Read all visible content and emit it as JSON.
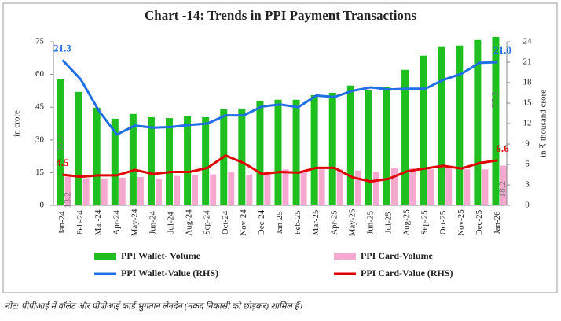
{
  "chart_data": {
    "type": "bar-line",
    "title": "Chart -14: Trends in PPI Payment Transactions",
    "y_label": "in crore",
    "y2_label": "in ₹ thousand crore",
    "categories": [
      "Jan-24",
      "Feb-24",
      "Mar-24",
      "Apr-24",
      "May-24",
      "Jun-24",
      "Jul-24",
      "Aug-24",
      "Sep-24",
      "Oct-24",
      "Nov-24",
      "Dec-24",
      "Jan-25",
      "Feb-25",
      "Mar-25",
      "Apr-25",
      "May-25",
      "Jun-25",
      "Jul-25",
      "Aug-25",
      "Sep-25",
      "Oct-25",
      "Nov-25",
      "Dec-25",
      "Jan-26"
    ],
    "ylim": [
      0,
      75
    ],
    "yticks": [
      0,
      15,
      30,
      45,
      60,
      75
    ],
    "y2lim": [
      0,
      24
    ],
    "y2ticks": [
      0,
      3,
      6,
      9,
      12,
      15,
      18,
      21,
      24
    ],
    "series": [
      {
        "name": "PPI Wallet- Volume",
        "kind": "bar",
        "color": "#1fbf1f",
        "values": [
          57.7,
          52,
          44.8,
          39.7,
          41.9,
          40.4,
          40,
          40.8,
          40.4,
          44,
          44.4,
          48,
          48.4,
          48.4,
          50.5,
          51.6,
          54.9,
          53,
          54.2,
          62.1,
          68.6,
          72.6,
          73.3,
          75.8,
          77.2
        ],
        "value_labels": [
          "57.7",
          null,
          null,
          null,
          null,
          null,
          null,
          null,
          null,
          null,
          null,
          null,
          null,
          null,
          null,
          null,
          null,
          null,
          null,
          null,
          null,
          null,
          null,
          null,
          "77.2"
        ]
      },
      {
        "name": "PPI Card-Volume",
        "kind": "bar",
        "color": "#f7a8cf",
        "values": [
          13.2,
          12.5,
          12.3,
          12.7,
          13,
          12.2,
          13.5,
          14,
          14.2,
          15.5,
          14,
          15.5,
          16.5,
          15.5,
          16.5,
          16.5,
          16,
          15.5,
          17,
          17,
          16.5,
          17,
          16.5,
          16.5,
          18.2
        ],
        "value_labels": [
          "13.2",
          null,
          null,
          null,
          null,
          null,
          null,
          null,
          null,
          null,
          null,
          null,
          null,
          null,
          null,
          null,
          null,
          null,
          null,
          null,
          null,
          null,
          null,
          null,
          "18.2"
        ]
      },
      {
        "name": "PPI Wallet-Value (RHS)",
        "kind": "line",
        "axis": "y2",
        "color": "#1f6fe6",
        "values": [
          21.3,
          18.5,
          13.9,
          10.4,
          11.7,
          11.4,
          11.5,
          11.8,
          12,
          13.2,
          13.2,
          14.5,
          14.8,
          14.4,
          16.1,
          15.9,
          16.8,
          17.3,
          17,
          17.1,
          17.1,
          18.4,
          19.3,
          20.9,
          21.0
        ],
        "value_labels": [
          "21.3",
          null,
          null,
          null,
          null,
          null,
          null,
          null,
          null,
          null,
          null,
          null,
          null,
          null,
          null,
          null,
          null,
          null,
          null,
          null,
          null,
          null,
          null,
          null,
          "21.0"
        ]
      },
      {
        "name": "PPI Card-Value (RHS)",
        "kind": "line",
        "axis": "y2",
        "color": "#e00000",
        "values": [
          4.5,
          4.2,
          4.4,
          4.4,
          5.2,
          4.6,
          4.9,
          4.9,
          5.5,
          7.3,
          6.2,
          4.6,
          4.9,
          4.8,
          5.5,
          5.5,
          4.1,
          3.5,
          3.9,
          5,
          5.4,
          5.8,
          5.4,
          6.2,
          6.6
        ],
        "value_labels": [
          "4.5",
          null,
          null,
          null,
          null,
          null,
          null,
          null,
          null,
          null,
          null,
          null,
          null,
          null,
          null,
          null,
          null,
          null,
          null,
          null,
          null,
          null,
          null,
          null,
          "6.6"
        ]
      }
    ],
    "note": "नोट: पीपीआई में वॉलेट और पीपीआई कार्ड भुगतान लेनदेन (नकद निकासी को छोड़कर) शामिल हैं।"
  }
}
